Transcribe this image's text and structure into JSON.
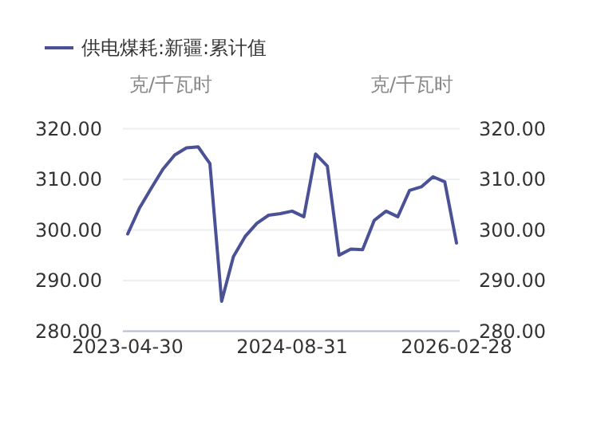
{
  "chart_data": {
    "type": "line",
    "categories": [
      "2023-04-30",
      null,
      null,
      null,
      null,
      null,
      null,
      null,
      null,
      null,
      null,
      null,
      null,
      null,
      "2024-08-31",
      null,
      null,
      null,
      null,
      null,
      null,
      null,
      null,
      null,
      null,
      null,
      null,
      null,
      "2026-02-28"
    ],
    "series": [
      {
        "name": "供电煤耗:新疆:累计值",
        "color": "#4a5196",
        "values": [
          299.2,
          304.3,
          308.2,
          312.0,
          314.8,
          316.2,
          316.4,
          313.1,
          285.9,
          294.7,
          298.7,
          301.3,
          302.9,
          303.2,
          303.7,
          302.6,
          315.0,
          312.6,
          295.0,
          296.2,
          296.1,
          301.9,
          303.7,
          302.6,
          307.8,
          308.5,
          310.5,
          309.5,
          297.4
        ]
      }
    ],
    "ylabel": "克/千瓦时",
    "y2label": "克/千瓦时",
    "ylim": [
      280,
      320
    ],
    "yticks": [
      {
        "value": 280,
        "label": "280.00"
      },
      {
        "value": 290,
        "label": "290.00"
      },
      {
        "value": 300,
        "label": "300.00"
      },
      {
        "value": 310,
        "label": "310.00"
      },
      {
        "value": 320,
        "label": "320.00"
      }
    ],
    "y2lim": [
      280,
      320
    ],
    "y2ticks": [
      {
        "value": 280,
        "label": "280.00"
      },
      {
        "value": 290,
        "label": "290.00"
      },
      {
        "value": 300,
        "label": "300.00"
      },
      {
        "value": 310,
        "label": "310.00"
      },
      {
        "value": 320,
        "label": "320.00"
      }
    ],
    "grid": "y",
    "legend": "top left",
    "marker": "none",
    "line_style": "solid"
  }
}
